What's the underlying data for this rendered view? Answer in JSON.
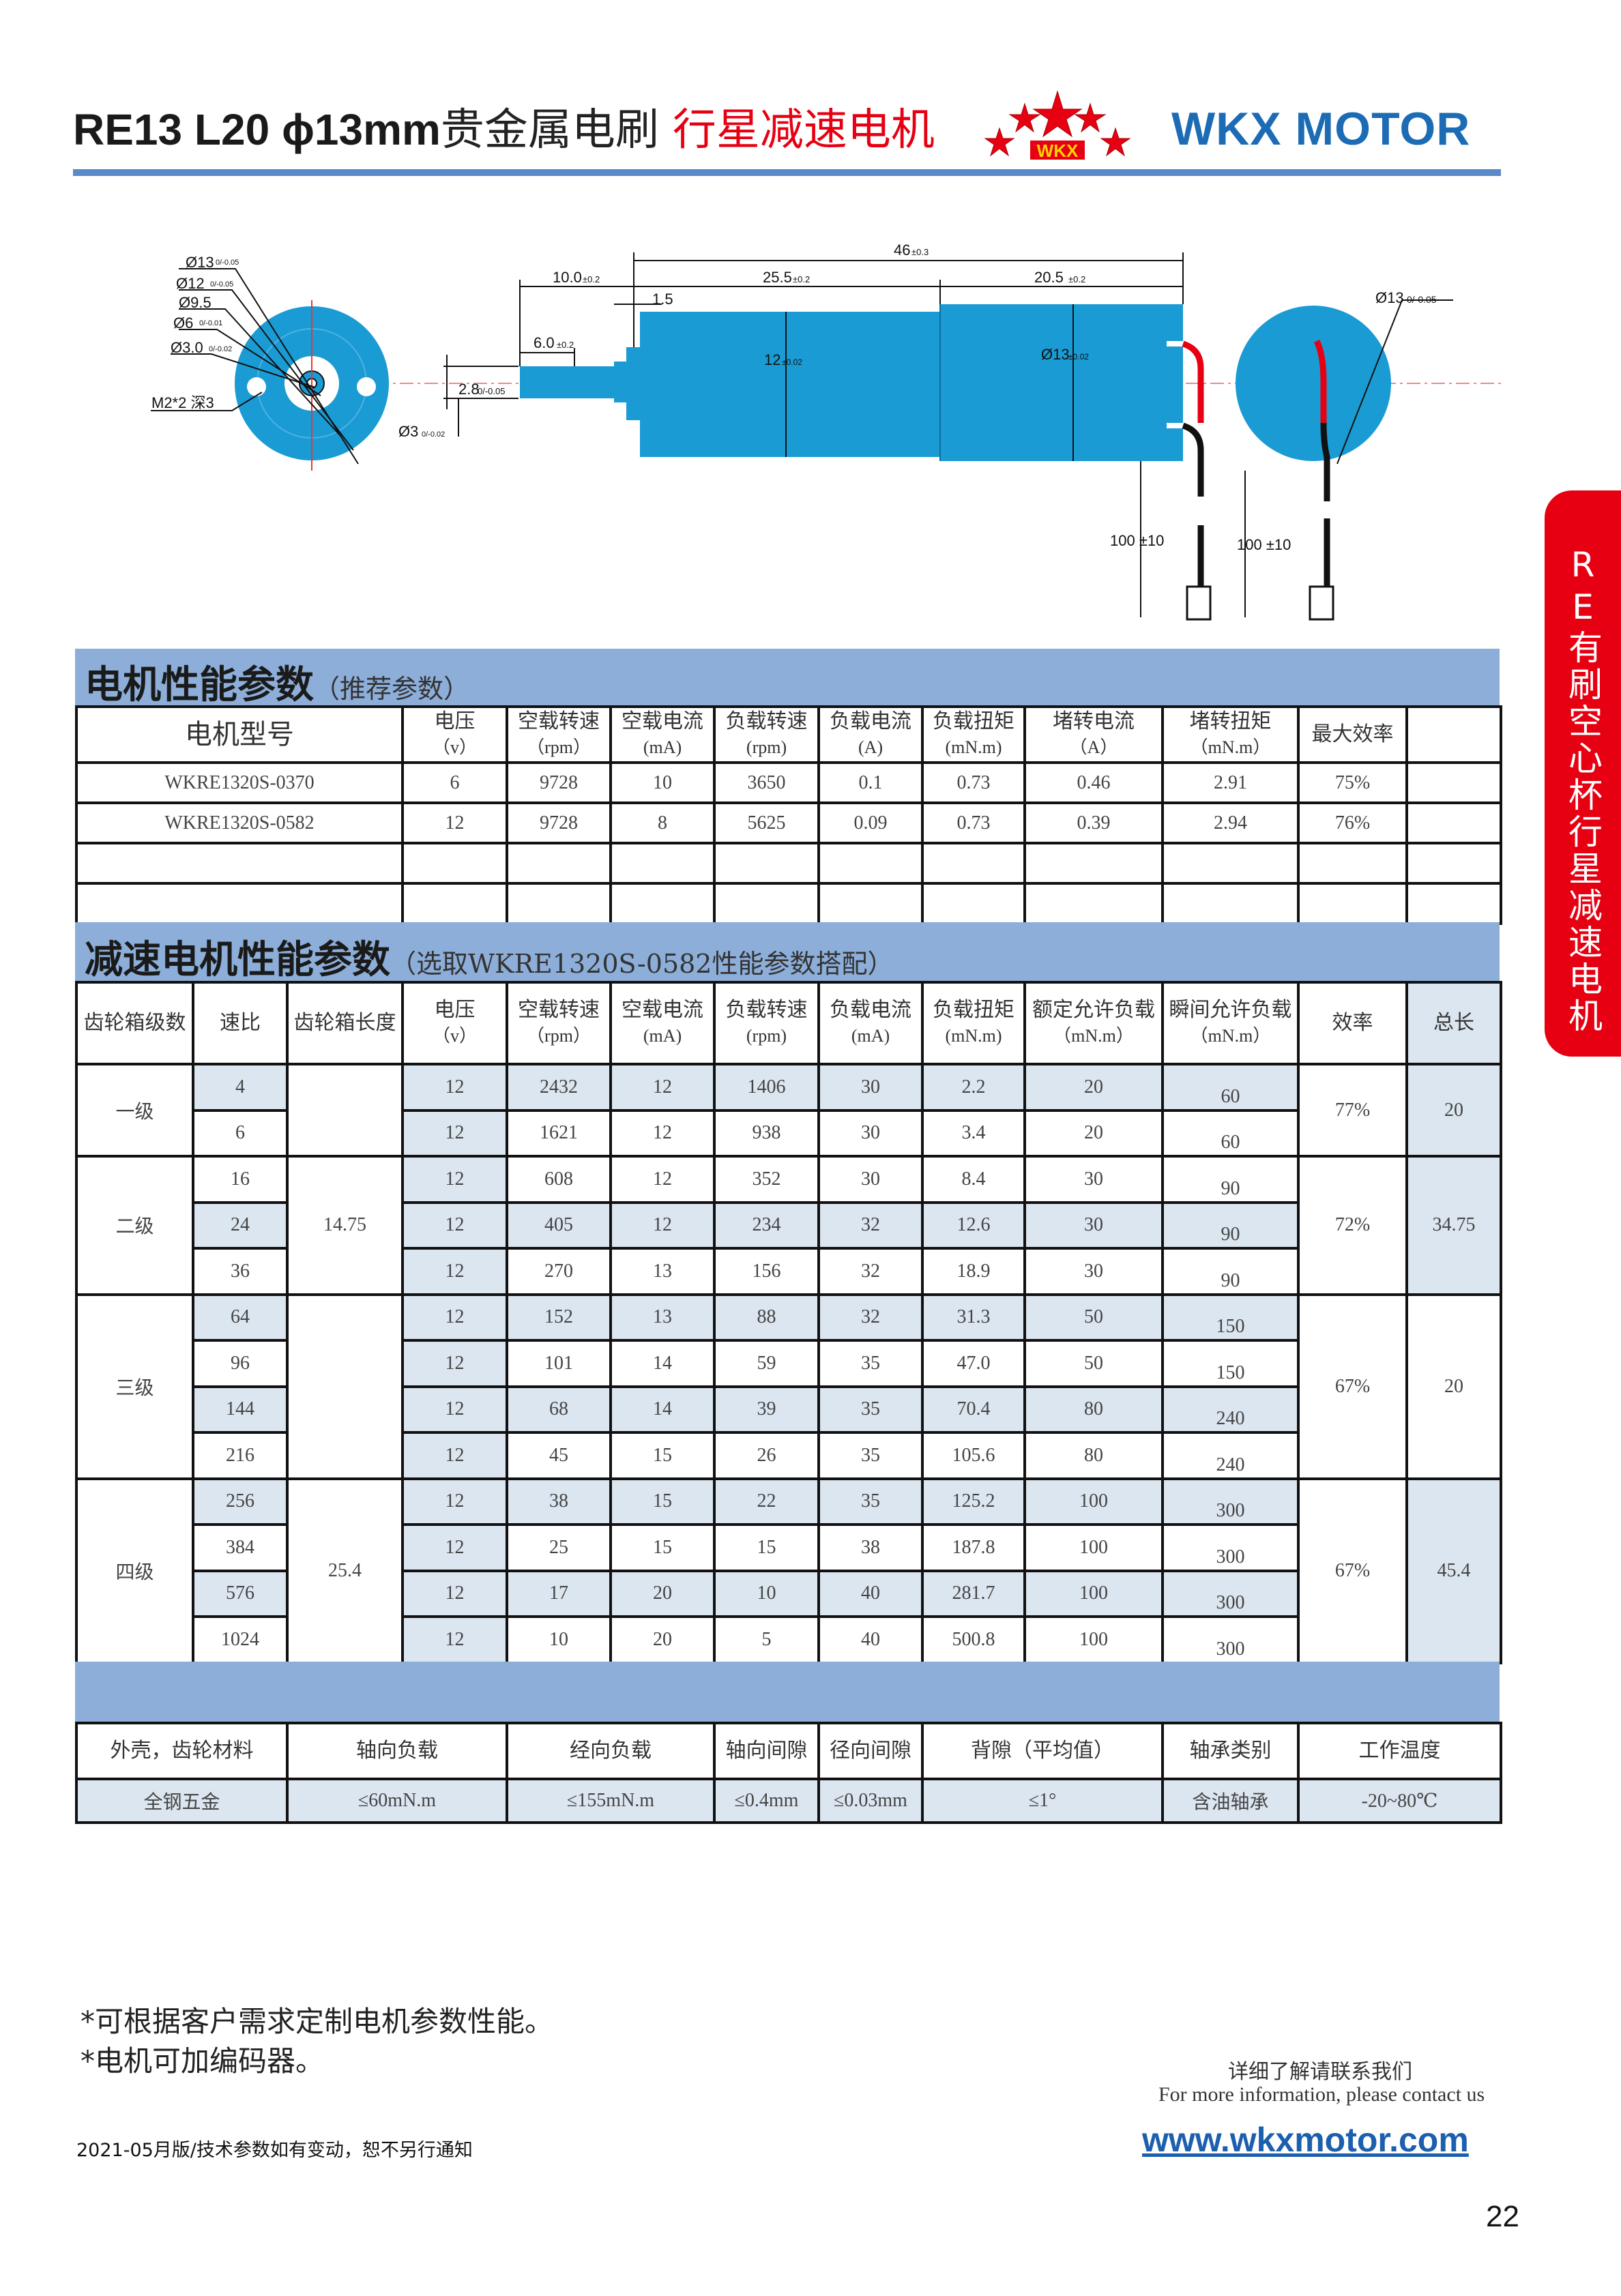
{
  "header": {
    "title_code": "RE13 L20 ϕ13mm",
    "title_cn": "贵金属电刷",
    "title_red": "行星减速电机",
    "logo_text": "WKX",
    "brand": "WKX MOTOR",
    "colors": {
      "accent_blue": "#1c6bb5",
      "red": "#e60012",
      "band": "#8caed9",
      "shade": "#dce6f0",
      "motor_body": "#1a9bd4"
    }
  },
  "side_tab": "RE有刷空心杯行星减速电机",
  "drawing": {
    "left_labels": [
      "Ø13",
      "Ø12",
      "Ø9.5",
      "Ø6",
      "Ø3.0"
    ],
    "left_tols": [
      "0/-0.05",
      "0/-0.05",
      "",
      "0/-0.01",
      "0/-0.02"
    ],
    "thread": "M2*2 深3",
    "shaft_flat": "2.8",
    "shaft_flat_tol": "0/-0.05",
    "shaft_dia": "Ø3",
    "shaft_dia_tol": "0/-0.02",
    "dim_total": "46",
    "dim_total_tol": "±0.3",
    "dim_shaft": "10.0",
    "dim_shaft_tol": "±0.2",
    "dim_gear": "25.5",
    "dim_gear_tol": "±0.2",
    "dim_motor": "20.5",
    "dim_motor_tol": "±0.2",
    "dim_flange": "1.5",
    "dim_flat_len": "6.0",
    "dim_flat_len_tol": "±0.2",
    "gear_dia": "12",
    "gear_dia_tol": "±0.02",
    "motor_dia": "Ø13",
    "motor_dia_tol": "±0.02",
    "lead_len_1": "100 ±10",
    "lead_len_2": "100 ±10",
    "right_dia": "Ø13",
    "right_dia_tol": "0/-0.05"
  },
  "motor_table": {
    "title": "电机性能参数",
    "subtitle": "（推荐参数）",
    "headers": [
      {
        "label": "电机型号",
        "unit": ""
      },
      {
        "label": "电压",
        "unit": "（v）"
      },
      {
        "label": "空载转速",
        "unit": "（rpm）"
      },
      {
        "label": "空载电流",
        "unit": "(mA)"
      },
      {
        "label": "负载转速",
        "unit": "(rpm)"
      },
      {
        "label": "负载电流",
        "unit": "(A)"
      },
      {
        "label": "负载扭矩",
        "unit": "(mN.m)"
      },
      {
        "label": "堵转电流",
        "unit": "（A）"
      },
      {
        "label": "堵转扭矩",
        "unit": "（mN.m）"
      },
      {
        "label": "最大效率",
        "unit": ""
      },
      {
        "label": "",
        "unit": ""
      }
    ],
    "rows": [
      [
        "WKRE1320S-0370",
        "6",
        "9728",
        "10",
        "3650",
        "0.1",
        "0.73",
        "0.46",
        "2.91",
        "75%",
        ""
      ],
      [
        "WKRE1320S-0582",
        "12",
        "9728",
        "8",
        "5625",
        "0.09",
        "0.73",
        "0.39",
        "2.94",
        "76%",
        ""
      ],
      [
        "",
        "",
        "",
        "",
        "",
        "",
        "",
        "",
        "",
        "",
        ""
      ],
      [
        "",
        "",
        "",
        "",
        "",
        "",
        "",
        "",
        "",
        "",
        ""
      ]
    ]
  },
  "gear_table": {
    "title": "减速电机性能参数",
    "subtitle": "（选取WKRE1320S-0582性能参数搭配）",
    "headers": [
      {
        "label": "齿轮箱级数",
        "unit": ""
      },
      {
        "label": "速比",
        "unit": ""
      },
      {
        "label": "齿轮箱长度",
        "unit": ""
      },
      {
        "label": "电压",
        "unit": "（v）"
      },
      {
        "label": "空载转速",
        "unit": "（rpm）"
      },
      {
        "label": "空载电流",
        "unit": "(mA)"
      },
      {
        "label": "负载转速",
        "unit": "(rpm)"
      },
      {
        "label": "负载电流",
        "unit": "(mA)"
      },
      {
        "label": "负载扭矩",
        "unit": "(mN.m)"
      },
      {
        "label": "额定允许负载",
        "unit": "（mN.m）"
      },
      {
        "label": "瞬间允许负载",
        "unit": "（mN.m）"
      },
      {
        "label": "效率",
        "unit": ""
      },
      {
        "label": "总长",
        "unit": ""
      }
    ],
    "groups": [
      {
        "stage": "一级",
        "gearbox_length": "",
        "efficiency": "77%",
        "total_length": "20",
        "rows": [
          {
            "ratio": "4",
            "values": [
              "12",
              "2432",
              "12",
              "1406",
              "30",
              "2.2",
              "20",
              "60"
            ]
          },
          {
            "ratio": "6",
            "values": [
              "12",
              "1621",
              "12",
              "938",
              "30",
              "3.4",
              "20",
              "60"
            ]
          }
        ]
      },
      {
        "stage": "二级",
        "gearbox_length": "14.75",
        "efficiency": "72%",
        "total_length": "34.75",
        "rows": [
          {
            "ratio": "16",
            "values": [
              "12",
              "608",
              "12",
              "352",
              "30",
              "8.4",
              "30",
              "90"
            ]
          },
          {
            "ratio": "24",
            "values": [
              "12",
              "405",
              "12",
              "234",
              "32",
              "12.6",
              "30",
              "90"
            ]
          },
          {
            "ratio": "36",
            "values": [
              "12",
              "270",
              "13",
              "156",
              "32",
              "18.9",
              "30",
              "90"
            ]
          }
        ]
      },
      {
        "stage": "三级",
        "gearbox_length": "",
        "efficiency": "67%",
        "total_length": "20",
        "rows": [
          {
            "ratio": "64",
            "values": [
              "12",
              "152",
              "13",
              "88",
              "32",
              "31.3",
              "50",
              "150"
            ]
          },
          {
            "ratio": "96",
            "values": [
              "12",
              "101",
              "14",
              "59",
              "35",
              "47.0",
              "50",
              "150"
            ]
          },
          {
            "ratio": "144",
            "values": [
              "12",
              "68",
              "14",
              "39",
              "35",
              "70.4",
              "80",
              "240"
            ]
          },
          {
            "ratio": "216",
            "values": [
              "12",
              "45",
              "15",
              "26",
              "35",
              "105.6",
              "80",
              "240"
            ]
          }
        ]
      },
      {
        "stage": "四级",
        "gearbox_length": "25.4",
        "efficiency": "67%",
        "total_length": "45.4",
        "rows": [
          {
            "ratio": "256",
            "values": [
              "12",
              "38",
              "15",
              "22",
              "35",
              "125.2",
              "100",
              "300"
            ]
          },
          {
            "ratio": "384",
            "values": [
              "12",
              "25",
              "15",
              "15",
              "38",
              "187.8",
              "100",
              "300"
            ]
          },
          {
            "ratio": "576",
            "values": [
              "12",
              "17",
              "20",
              "10",
              "40",
              "281.7",
              "100",
              "300"
            ]
          },
          {
            "ratio": "1024",
            "values": [
              "12",
              "10",
              "20",
              "5",
              "40",
              "500.8",
              "100",
              "300"
            ]
          }
        ]
      }
    ]
  },
  "spec_table": {
    "headers": [
      "外壳，齿轮材料",
      "轴向负载",
      "经向负载",
      "轴向间隙",
      "径向间隙",
      "背隙（平均值）",
      "轴承类别",
      "工作温度"
    ],
    "values": [
      "全钢五金",
      "≤60mN.m",
      "≤155mN.m",
      "≤0.4mm",
      "≤0.03mm",
      "≤1°",
      "含油轴承",
      "-20~80℃"
    ]
  },
  "notes": [
    "*可根据客户需求定制电机参数性能。",
    "*电机可加编码器。"
  ],
  "contact": {
    "cn": "详细了解请联系我们",
    "en": "For more information, please contact us",
    "url": "www.wkxmotor.com"
  },
  "footer": "2021-05月版/技术参数如有变动，恕不另行通知",
  "page_number": "22"
}
